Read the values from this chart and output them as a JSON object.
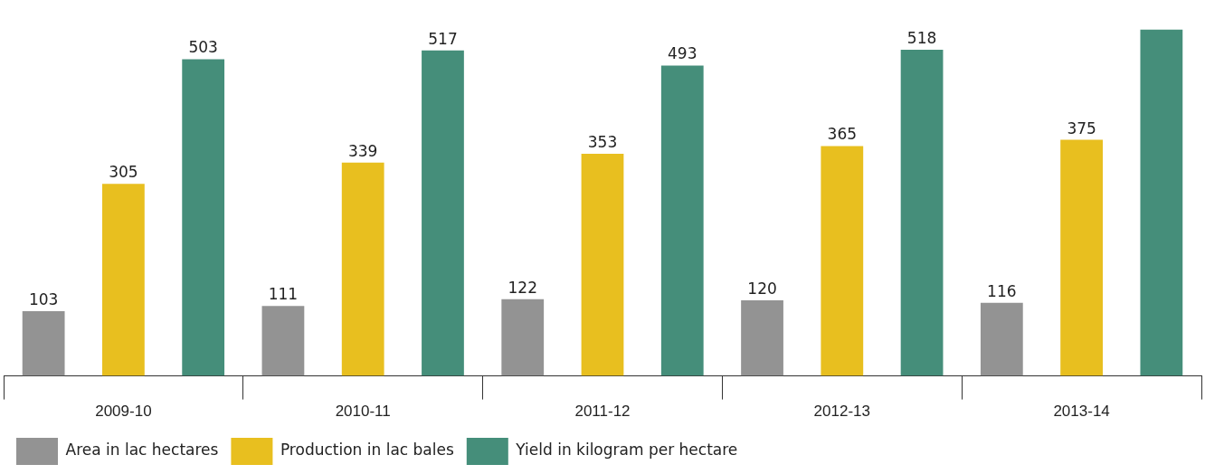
{
  "chart_data": {
    "type": "bar",
    "categories": [
      "2009-10",
      "2010-11",
      "2011-12",
      "2012-13",
      "2013-14"
    ],
    "series": [
      {
        "name": "Area in lac hectares",
        "color": "#939393",
        "values": [
          103,
          111,
          122,
          120,
          116
        ],
        "value_labels": [
          "103",
          "111",
          "122",
          "120",
          "116"
        ]
      },
      {
        "name": "Production in lac bales",
        "color": "#e8bf1f",
        "values": [
          305,
          339,
          353,
          365,
          375
        ],
        "value_labels": [
          "305",
          "339",
          "353",
          "365",
          "375"
        ]
      },
      {
        "name": "Yield in kilogram per hectare",
        "color": "#458e7a",
        "values": [
          503,
          517,
          493,
          518,
          550
        ],
        "value_labels": [
          "503",
          "517",
          "493",
          "518",
          null
        ]
      }
    ],
    "legend": "bottom left"
  }
}
